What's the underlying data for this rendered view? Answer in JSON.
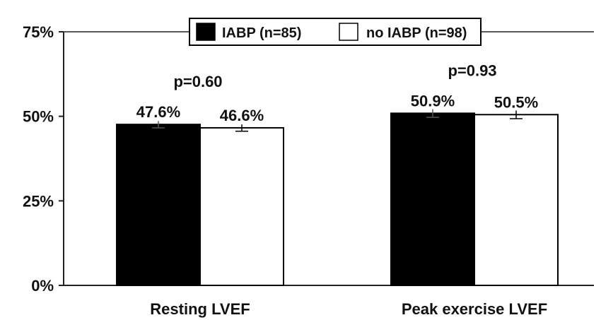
{
  "chart_data": {
    "type": "bar",
    "categories": [
      "Resting LVEF",
      "Peak exercise LVEF"
    ],
    "series": [
      {
        "name": "IABP (n=85)",
        "values": [
          47.6,
          50.9
        ],
        "error": [
          1.0,
          1.2
        ],
        "labels": [
          "47.6%",
          "50.9%"
        ],
        "color": "#000000"
      },
      {
        "name": "no IABP (n=98)",
        "values": [
          46.6,
          50.5
        ],
        "error": [
          1.0,
          1.2
        ],
        "labels": [
          "46.6%",
          "50.5%"
        ],
        "color": "#ffffff"
      }
    ],
    "annotations": [
      "p=0.60",
      "p=0.93"
    ],
    "yticks": [
      0,
      25,
      50,
      75
    ],
    "ytick_labels": [
      "0%",
      "25%",
      "50%",
      "75%"
    ],
    "ylim": [
      0,
      75
    ],
    "legend_position": "top-center",
    "grid": false
  }
}
